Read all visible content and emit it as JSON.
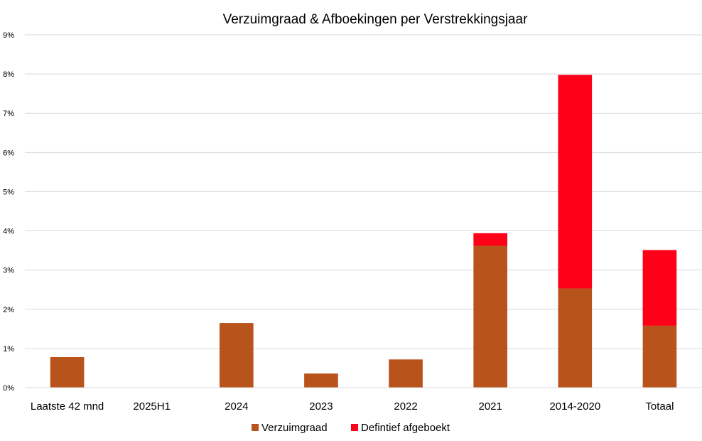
{
  "chart_data": {
    "type": "bar",
    "stacked": true,
    "title": "Verzuimgraad & Afboekingen per Verstrekkingsjaar",
    "xlabel": "",
    "ylabel": "",
    "ylim": [
      0,
      9
    ],
    "y_unit": "%",
    "yticks": [
      "0%",
      "1%",
      "2%",
      "3%",
      "4%",
      "5%",
      "6%",
      "7%",
      "8%",
      "9%"
    ],
    "categories": [
      "Laatste 42 mnd",
      "2025H1",
      "2024",
      "2023",
      "2022",
      "2021",
      "2014-2020",
      "Totaal"
    ],
    "series": [
      {
        "name": "Verzuimgraad",
        "color": "#b9531c",
        "values": [
          0.78,
          0,
          1.65,
          0.36,
          0.72,
          3.62,
          2.53,
          1.58
        ]
      },
      {
        "name": "Defintief afgeboekt",
        "color": "#ff0019",
        "values": [
          0,
          0,
          0,
          0,
          0,
          0.32,
          5.45,
          1.93
        ]
      }
    ],
    "grid": true,
    "legend_position": "bottom"
  }
}
